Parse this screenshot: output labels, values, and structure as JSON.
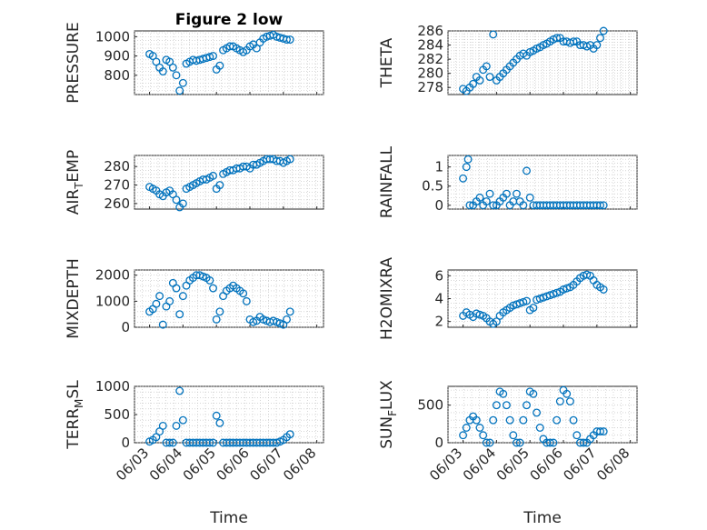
{
  "figure": {
    "background": "#ffffff",
    "marker_color": "#0072bd"
  },
  "chart_data": [
    {
      "type": "scatter",
      "title": "Figure 2 low",
      "xlabel": "",
      "ylabel": "PRESSURE",
      "ylim": [
        700,
        1030
      ],
      "yticks": [
        800,
        900,
        1000
      ],
      "grid": true,
      "series": [
        {
          "x": [
            0.0,
            0.1,
            0.2,
            0.3,
            0.4,
            0.5,
            0.6,
            0.7,
            0.8,
            0.9,
            1.0,
            1.1,
            1.2,
            1.3,
            1.4,
            1.5,
            1.6,
            1.7,
            1.8,
            1.9,
            2.0,
            2.1,
            2.2,
            2.3,
            2.4,
            2.5,
            2.6,
            2.7,
            2.8,
            2.9,
            3.0,
            3.1,
            3.2,
            3.3,
            3.4,
            3.5,
            3.6,
            3.7,
            3.8,
            3.9,
            4.0,
            4.1,
            4.2
          ],
          "y": [
            910,
            900,
            870,
            840,
            820,
            880,
            870,
            840,
            800,
            720,
            760,
            860,
            870,
            880,
            875,
            880,
            885,
            890,
            895,
            900,
            830,
            850,
            930,
            940,
            950,
            950,
            940,
            930,
            920,
            930,
            950,
            960,
            940,
            970,
            990,
            1000,
            1005,
            1010,
            1000,
            995,
            990,
            985,
            985
          ]
        }
      ]
    },
    {
      "type": "scatter",
      "title": "",
      "xlabel": "",
      "ylabel": "THETA",
      "ylim": [
        277,
        286
      ],
      "yticks": [
        278,
        280,
        282,
        284,
        286
      ],
      "grid": true,
      "series": [
        {
          "x": [
            0.0,
            0.1,
            0.2,
            0.3,
            0.4,
            0.5,
            0.6,
            0.7,
            0.8,
            0.9,
            1.0,
            1.1,
            1.2,
            1.3,
            1.4,
            1.5,
            1.6,
            1.7,
            1.8,
            1.9,
            2.0,
            2.1,
            2.2,
            2.3,
            2.4,
            2.5,
            2.6,
            2.7,
            2.8,
            2.9,
            3.0,
            3.1,
            3.2,
            3.3,
            3.4,
            3.5,
            3.6,
            3.7,
            3.8,
            3.9,
            4.0,
            4.1,
            4.2
          ],
          "y": [
            277.8,
            277.5,
            278.0,
            278.5,
            279.5,
            279.0,
            280.5,
            281.0,
            279.5,
            285.5,
            279.0,
            279.5,
            280.0,
            280.5,
            281.0,
            281.5,
            282.0,
            282.5,
            282.8,
            282.5,
            283.0,
            283.2,
            283.5,
            283.7,
            284.0,
            284.2,
            284.5,
            284.8,
            285.0,
            285.0,
            284.5,
            284.5,
            284.3,
            284.5,
            284.5,
            284.0,
            284.0,
            283.8,
            284.0,
            283.5,
            284.0,
            285.0,
            286.0
          ]
        }
      ]
    },
    {
      "type": "scatter",
      "title": "",
      "xlabel": "",
      "ylabel": "AIR_TEMP",
      "ylim": [
        257,
        286
      ],
      "yticks": [
        260,
        270,
        280
      ],
      "grid": true,
      "series": [
        {
          "x": [
            0.0,
            0.1,
            0.2,
            0.3,
            0.4,
            0.5,
            0.6,
            0.7,
            0.8,
            0.9,
            1.0,
            1.1,
            1.2,
            1.3,
            1.4,
            1.5,
            1.6,
            1.7,
            1.8,
            1.9,
            2.0,
            2.1,
            2.2,
            2.3,
            2.4,
            2.5,
            2.6,
            2.7,
            2.8,
            2.9,
            3.0,
            3.1,
            3.2,
            3.3,
            3.4,
            3.5,
            3.6,
            3.7,
            3.8,
            3.9,
            4.0,
            4.1,
            4.2
          ],
          "y": [
            269,
            268,
            267,
            265,
            264,
            266,
            267,
            265,
            262,
            258,
            260,
            268,
            269,
            270,
            271,
            272,
            273,
            273,
            274,
            275,
            268,
            270,
            276,
            277,
            278,
            278,
            279,
            279,
            280,
            280,
            279,
            281,
            281,
            282,
            283,
            284,
            284,
            284,
            283,
            283,
            282,
            283,
            284
          ]
        }
      ]
    },
    {
      "type": "scatter",
      "title": "",
      "xlabel": "",
      "ylabel": "RAINFALL",
      "ylim": [
        -0.1,
        1.3
      ],
      "yticks": [
        0,
        0.5,
        1
      ],
      "grid": true,
      "series": [
        {
          "x": [
            0.0,
            0.1,
            0.15,
            0.2,
            0.3,
            0.4,
            0.5,
            0.6,
            0.7,
            0.8,
            0.9,
            1.0,
            1.1,
            1.2,
            1.3,
            1.4,
            1.5,
            1.6,
            1.7,
            1.8,
            1.9,
            2.0,
            2.1,
            2.2,
            2.3,
            2.4,
            2.5,
            2.6,
            2.7,
            2.8,
            2.9,
            3.0,
            3.1,
            3.2,
            3.3,
            3.4,
            3.5,
            3.6,
            3.7,
            3.8,
            3.9,
            4.0,
            4.1,
            4.2
          ],
          "y": [
            0.7,
            1.0,
            1.2,
            0.0,
            0.0,
            0.1,
            0.2,
            0.0,
            0.1,
            0.3,
            0.0,
            0.0,
            0.1,
            0.2,
            0.3,
            0.0,
            0.1,
            0.3,
            0.1,
            0.0,
            0.9,
            0.2,
            0.0,
            0.0,
            0.0,
            0.0,
            0.0,
            0.0,
            0.0,
            0.0,
            0.0,
            0.0,
            0.0,
            0.0,
            0.0,
            0.0,
            0.0,
            0.0,
            0.0,
            0.0,
            0.0,
            0.0,
            0.0,
            0.0
          ]
        }
      ]
    },
    {
      "type": "scatter",
      "title": "",
      "xlabel": "",
      "ylabel": "MIXDEPTH",
      "ylim": [
        0,
        2200
      ],
      "yticks": [
        0,
        1000,
        2000
      ],
      "grid": true,
      "series": [
        {
          "x": [
            0.0,
            0.1,
            0.2,
            0.3,
            0.4,
            0.5,
            0.6,
            0.7,
            0.8,
            0.9,
            1.0,
            1.1,
            1.2,
            1.3,
            1.4,
            1.5,
            1.6,
            1.7,
            1.8,
            1.9,
            2.0,
            2.1,
            2.2,
            2.3,
            2.4,
            2.5,
            2.6,
            2.7,
            2.8,
            2.9,
            3.0,
            3.1,
            3.2,
            3.3,
            3.4,
            3.5,
            3.6,
            3.7,
            3.8,
            3.9,
            4.0,
            4.1,
            4.2
          ],
          "y": [
            600,
            700,
            900,
            1200,
            100,
            800,
            1000,
            1700,
            1500,
            500,
            1200,
            1600,
            1800,
            1900,
            2000,
            2000,
            1950,
            1900,
            1800,
            1500,
            300,
            600,
            1200,
            1400,
            1500,
            1600,
            1500,
            1400,
            1300,
            1000,
            300,
            200,
            250,
            400,
            300,
            250,
            200,
            250,
            200,
            150,
            100,
            300,
            600
          ]
        }
      ]
    },
    {
      "type": "scatter",
      "title": "",
      "xlabel": "",
      "ylabel": "H2OMIXRA",
      "ylim": [
        1.5,
        6.5
      ],
      "yticks": [
        2,
        4,
        6
      ],
      "grid": true,
      "series": [
        {
          "x": [
            0.0,
            0.1,
            0.2,
            0.3,
            0.4,
            0.5,
            0.6,
            0.7,
            0.8,
            0.9,
            1.0,
            1.1,
            1.2,
            1.3,
            1.4,
            1.5,
            1.6,
            1.7,
            1.8,
            1.9,
            2.0,
            2.1,
            2.2,
            2.3,
            2.4,
            2.5,
            2.6,
            2.7,
            2.8,
            2.9,
            3.0,
            3.1,
            3.2,
            3.3,
            3.4,
            3.5,
            3.6,
            3.7,
            3.8,
            3.9,
            4.0,
            4.1,
            4.2
          ],
          "y": [
            2.5,
            2.8,
            2.6,
            2.4,
            2.7,
            2.6,
            2.5,
            2.3,
            2.0,
            1.8,
            2.0,
            2.5,
            2.8,
            3.0,
            3.2,
            3.4,
            3.5,
            3.6,
            3.7,
            3.8,
            3.0,
            3.2,
            3.9,
            4.0,
            4.1,
            4.2,
            4.3,
            4.4,
            4.5,
            4.6,
            4.8,
            4.9,
            5.0,
            5.2,
            5.5,
            5.8,
            6.0,
            6.1,
            6.0,
            5.6,
            5.2,
            5.0,
            4.8
          ]
        }
      ]
    },
    {
      "type": "scatter",
      "title": "",
      "xlabel": "Time",
      "ylabel": "TERR_MSL",
      "ylim": [
        0,
        1000
      ],
      "yticks": [
        0,
        500,
        1000
      ],
      "grid": true,
      "xtick_labels": [
        "06/03",
        "06/04",
        "06/05",
        "06/06",
        "06/07",
        "06/08"
      ],
      "series": [
        {
          "x": [
            0.0,
            0.1,
            0.2,
            0.3,
            0.4,
            0.5,
            0.6,
            0.7,
            0.8,
            0.9,
            1.0,
            1.1,
            1.2,
            1.3,
            1.4,
            1.5,
            1.6,
            1.7,
            1.8,
            1.9,
            2.0,
            2.1,
            2.2,
            2.3,
            2.4,
            2.5,
            2.6,
            2.7,
            2.8,
            2.9,
            3.0,
            3.1,
            3.2,
            3.3,
            3.4,
            3.5,
            3.6,
            3.7,
            3.8,
            3.9,
            4.0,
            4.1,
            4.2
          ],
          "y": [
            20,
            50,
            100,
            200,
            300,
            0,
            0,
            0,
            300,
            920,
            400,
            0,
            0,
            0,
            0,
            0,
            0,
            0,
            0,
            0,
            480,
            350,
            0,
            0,
            0,
            0,
            0,
            0,
            0,
            0,
            0,
            0,
            0,
            0,
            0,
            0,
            0,
            0,
            0,
            20,
            50,
            100,
            150
          ]
        }
      ]
    },
    {
      "type": "scatter",
      "title": "",
      "xlabel": "Time",
      "ylabel": "SUN_FLUX",
      "ylim": [
        0,
        750
      ],
      "yticks": [
        0,
        500
      ],
      "grid": true,
      "xtick_labels": [
        "06/03",
        "06/04",
        "06/05",
        "06/06",
        "06/07",
        "06/08"
      ],
      "series": [
        {
          "x": [
            0.0,
            0.1,
            0.2,
            0.3,
            0.4,
            0.5,
            0.6,
            0.7,
            0.8,
            0.9,
            1.0,
            1.1,
            1.2,
            1.3,
            1.4,
            1.5,
            1.6,
            1.7,
            1.8,
            1.9,
            2.0,
            2.1,
            2.2,
            2.3,
            2.4,
            2.5,
            2.6,
            2.7,
            2.8,
            2.9,
            3.0,
            3.1,
            3.2,
            3.3,
            3.4,
            3.5,
            3.6,
            3.7,
            3.8,
            3.9,
            4.0,
            4.1,
            4.2
          ],
          "y": [
            100,
            200,
            300,
            350,
            300,
            200,
            100,
            0,
            0,
            300,
            500,
            680,
            650,
            500,
            300,
            100,
            0,
            0,
            300,
            500,
            680,
            650,
            400,
            200,
            50,
            0,
            0,
            0,
            300,
            550,
            700,
            650,
            550,
            300,
            100,
            0,
            0,
            0,
            50,
            100,
            150,
            150,
            150
          ]
        }
      ]
    }
  ]
}
